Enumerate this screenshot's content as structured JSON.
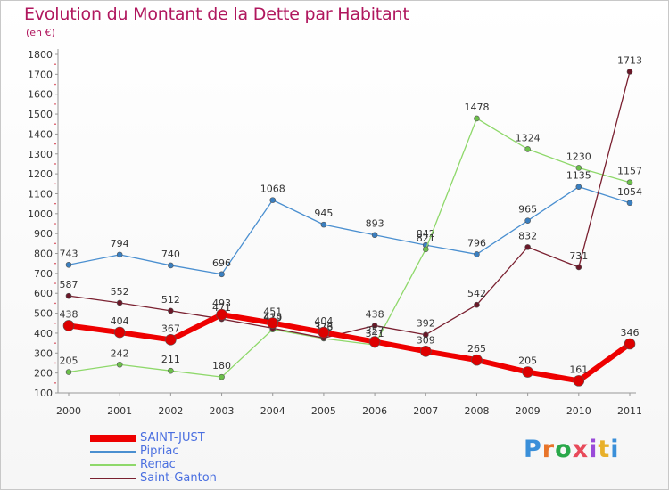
{
  "title": "Evolution du Montant de la Dette par Habitant",
  "subtitle": "(en €)",
  "logo": {
    "text": "Proxiti",
    "colors": [
      "#3a8fd9",
      "#e8742a",
      "#2aa84a",
      "#e84a5a",
      "#9a4ad9",
      "#e8b02a",
      "#3a8fd9"
    ]
  },
  "chart_data": {
    "type": "line",
    "title": "Evolution du Montant de la Dette par Habitant",
    "subtitle": "(en €)",
    "x": [
      "2000",
      "2001",
      "2002",
      "2003",
      "2004",
      "2005",
      "2006",
      "2007",
      "2008",
      "2009",
      "2010",
      "2011"
    ],
    "ylim": [
      100,
      1800
    ],
    "yticks": [
      100,
      200,
      300,
      400,
      500,
      600,
      700,
      800,
      900,
      1000,
      1100,
      1200,
      1300,
      1400,
      1500,
      1600,
      1700,
      1800
    ],
    "grid": false,
    "legend_position": "bottom-left",
    "series": [
      {
        "name": "Pipriac",
        "color": "#4a8fd0",
        "marker": "#3a7fc0",
        "width": 1.3,
        "values": [
          743,
          794,
          740,
          696,
          1068,
          945,
          893,
          842,
          796,
          965,
          1135,
          1054
        ]
      },
      {
        "name": "Renac",
        "color": "#8ed86a",
        "marker": "#6cc04a",
        "width": 1.3,
        "values": [
          205,
          242,
          211,
          180,
          419,
          373,
          341,
          821,
          1478,
          1324,
          1230,
          1157
        ]
      },
      {
        "name": "Saint-Ganton",
        "color": "#7a2030",
        "marker": "#6a1828",
        "width": 1.3,
        "values": [
          587,
          552,
          512,
          471,
          425,
          376,
          438,
          392,
          542,
          832,
          731,
          1713
        ]
      },
      {
        "name": "SAINT-JUST",
        "color": "#ee0000",
        "marker": "#dd0000",
        "width": 6,
        "values": [
          438,
          404,
          367,
          493,
          451,
          404,
          357,
          309,
          265,
          205,
          161,
          346
        ]
      }
    ],
    "legend_order": [
      "SAINT-JUST",
      "Pipriac",
      "Renac",
      "Saint-Ganton"
    ]
  }
}
